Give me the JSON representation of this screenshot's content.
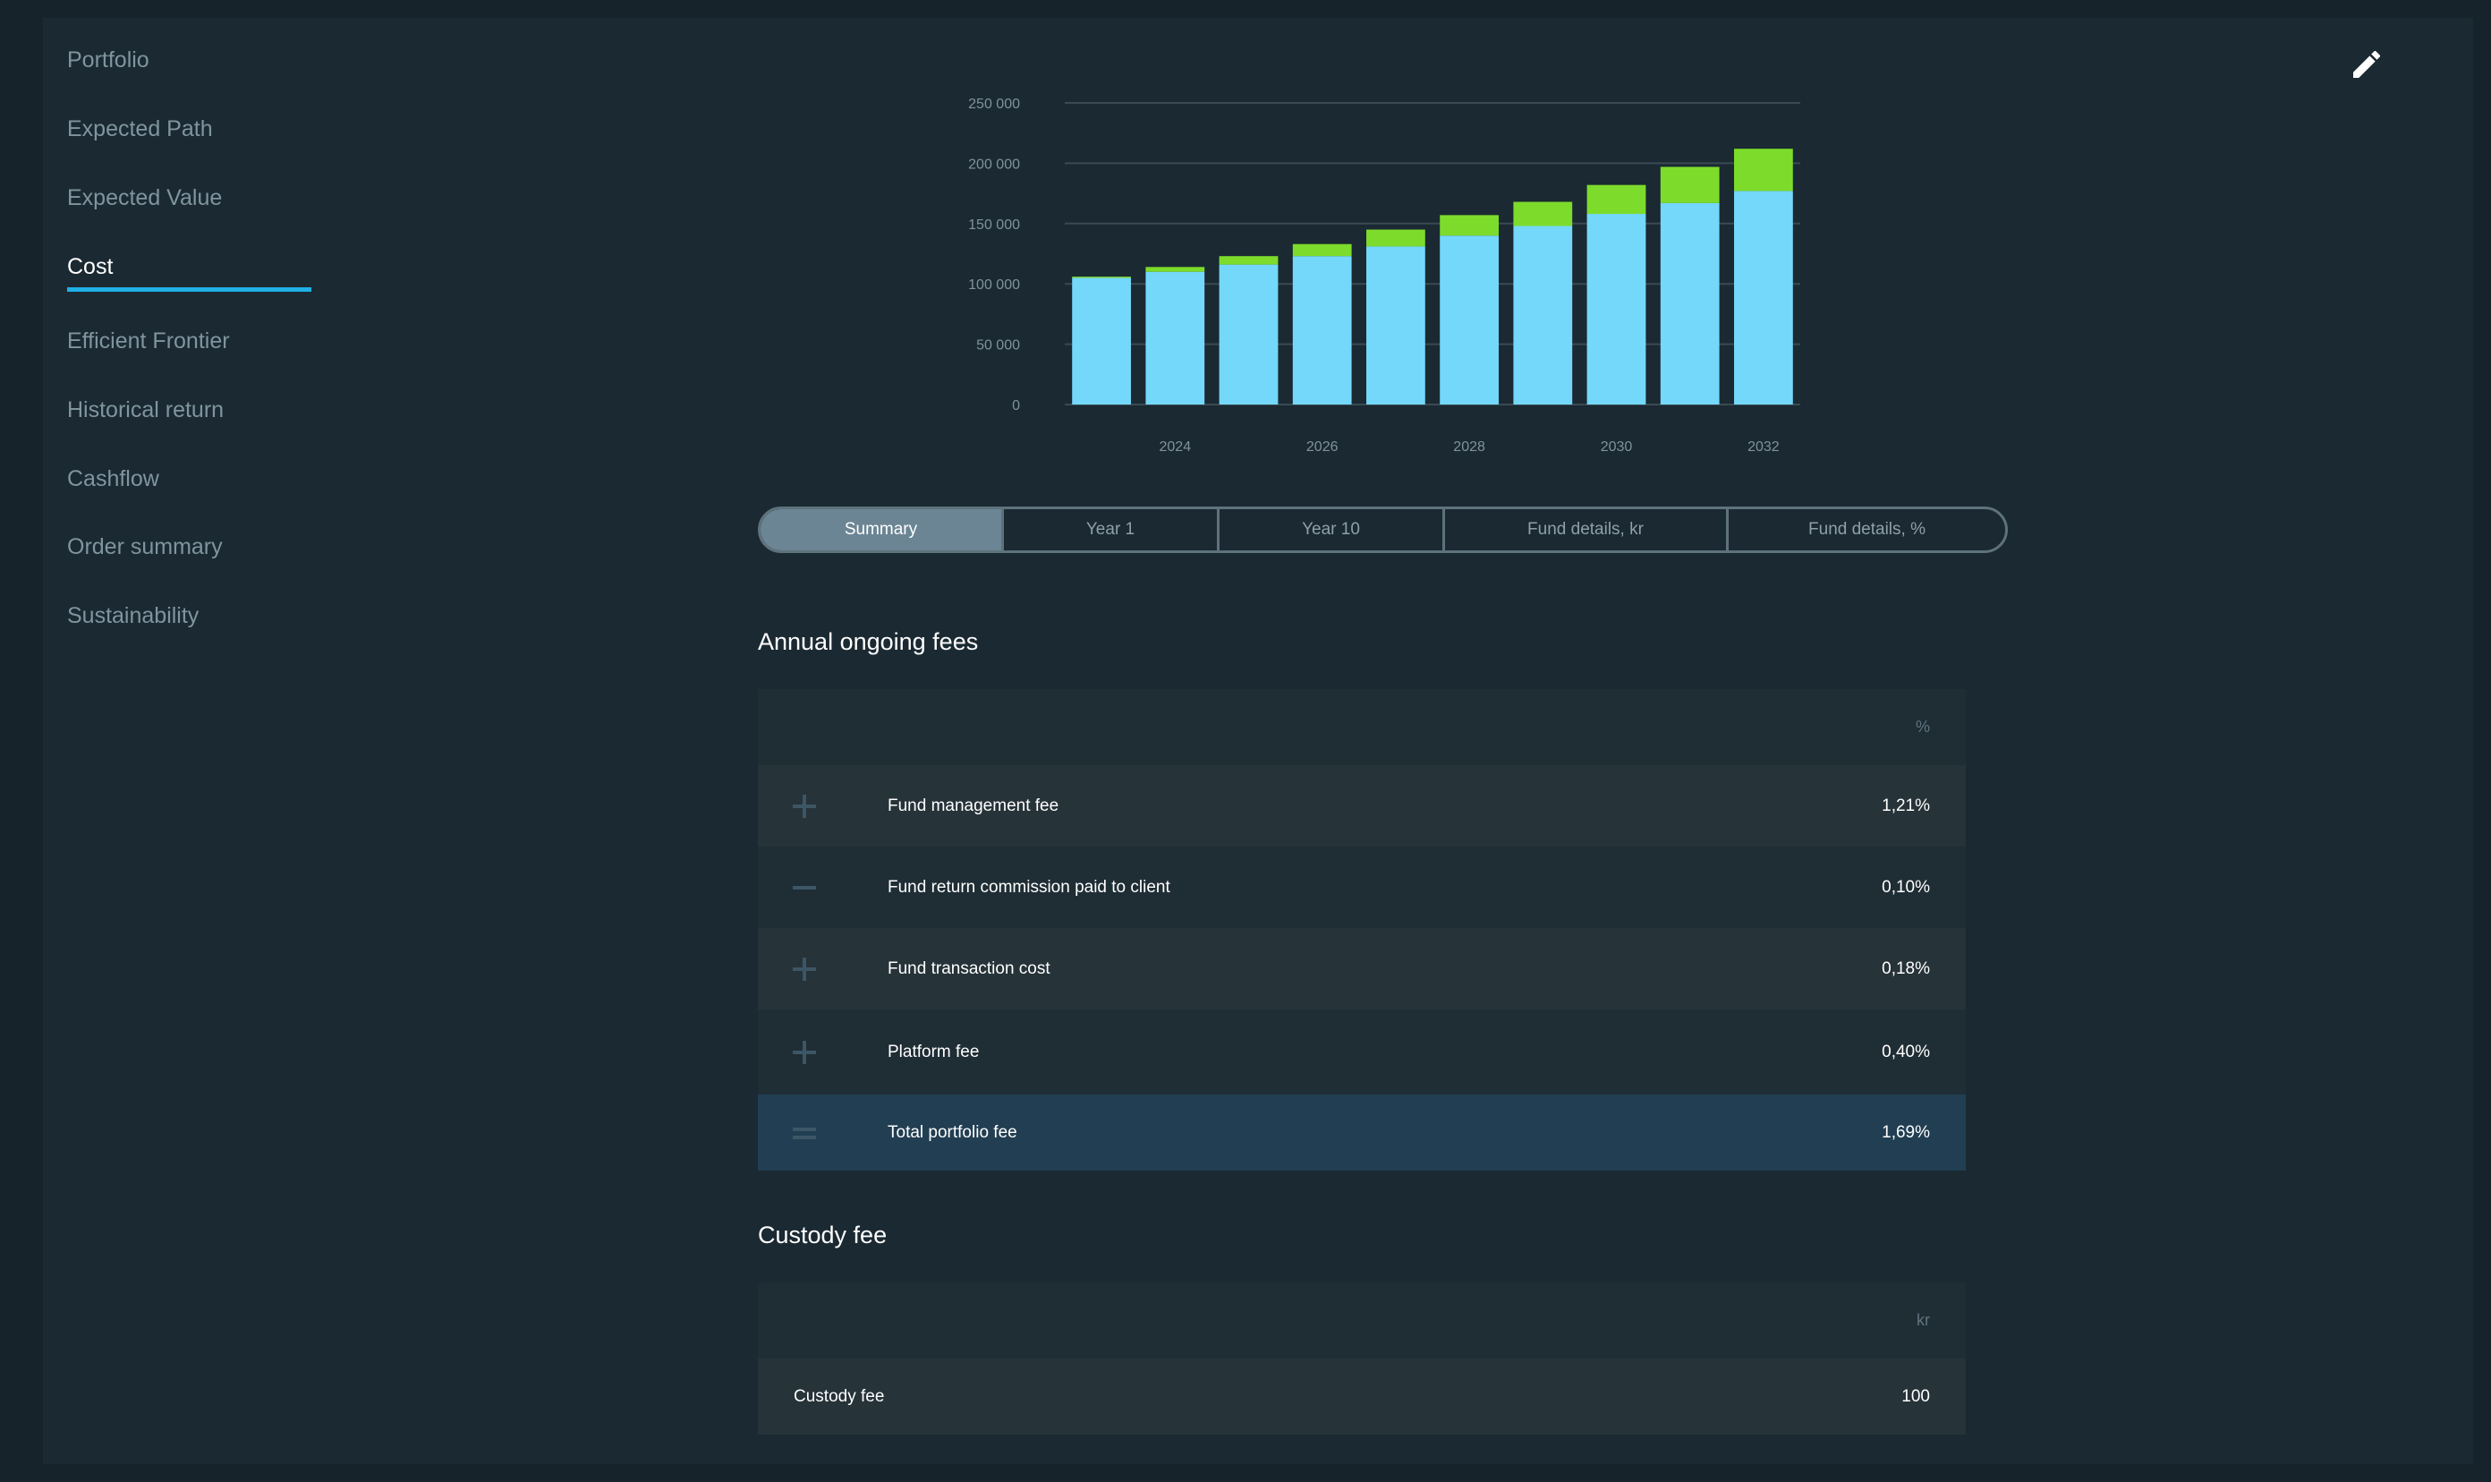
{
  "sidebar": {
    "items": [
      {
        "label": "Portfolio"
      },
      {
        "label": "Expected Path"
      },
      {
        "label": "Expected Value"
      },
      {
        "label": "Cost"
      },
      {
        "label": "Efficient Frontier"
      },
      {
        "label": "Historical return"
      },
      {
        "label": "Cashflow"
      },
      {
        "label": "Order summary"
      },
      {
        "label": "Sustainability"
      }
    ],
    "active_item": "Cost"
  },
  "toolbar": {
    "edit_icon": "pencil-icon"
  },
  "colors": {
    "accent": "#1fb0e6",
    "bar_base": "#74d8fb",
    "bar_top": "#7ddc2b"
  },
  "chart_data": {
    "type": "bar",
    "stacked": true,
    "categories": [
      "2023",
      "2024",
      "2025",
      "2026",
      "2027",
      "2028",
      "2029",
      "2030",
      "2031",
      "2032"
    ],
    "x_tick_labels": [
      "2024",
      "2026",
      "2028",
      "2030",
      "2032"
    ],
    "y_tick_labels": [
      "0",
      "50 000",
      "100 000",
      "150 000",
      "200 000",
      "250 000"
    ],
    "ylim": [
      0,
      250000
    ],
    "grid": true,
    "series": [
      {
        "color": "#74d8fb",
        "values": [
          105000,
          110000,
          116000,
          123000,
          131000,
          140000,
          148000,
          158000,
          167000,
          177000
        ]
      },
      {
        "color": "#7ddc2b",
        "values": [
          1000,
          4000,
          7000,
          10000,
          14000,
          17000,
          20000,
          24000,
          30000,
          35000
        ]
      }
    ]
  },
  "tabs": [
    {
      "label": "Summary",
      "active": true
    },
    {
      "label": "Year 1",
      "active": false
    },
    {
      "label": "Year 10",
      "active": false
    },
    {
      "label": "Fund details, kr",
      "active": false
    },
    {
      "label": "Fund details, %",
      "active": false
    }
  ],
  "annual_fees": {
    "title": "Annual ongoing fees",
    "unit": "%",
    "rows": [
      {
        "symbol": "plus",
        "label": "Fund management fee",
        "value": "1,21%"
      },
      {
        "symbol": "minus",
        "label": "Fund return commission paid to client",
        "value": "0,10%"
      },
      {
        "symbol": "plus",
        "label": "Fund transaction cost",
        "value": "0,18%"
      },
      {
        "symbol": "plus",
        "label": "Platform fee",
        "value": "0,40%"
      }
    ],
    "total": {
      "symbol": "equals",
      "label": "Total portfolio fee",
      "value": "1,69%"
    }
  },
  "custody_fee": {
    "title": "Custody fee",
    "unit": "kr",
    "row": {
      "label": "Custody fee",
      "value": "100"
    }
  }
}
